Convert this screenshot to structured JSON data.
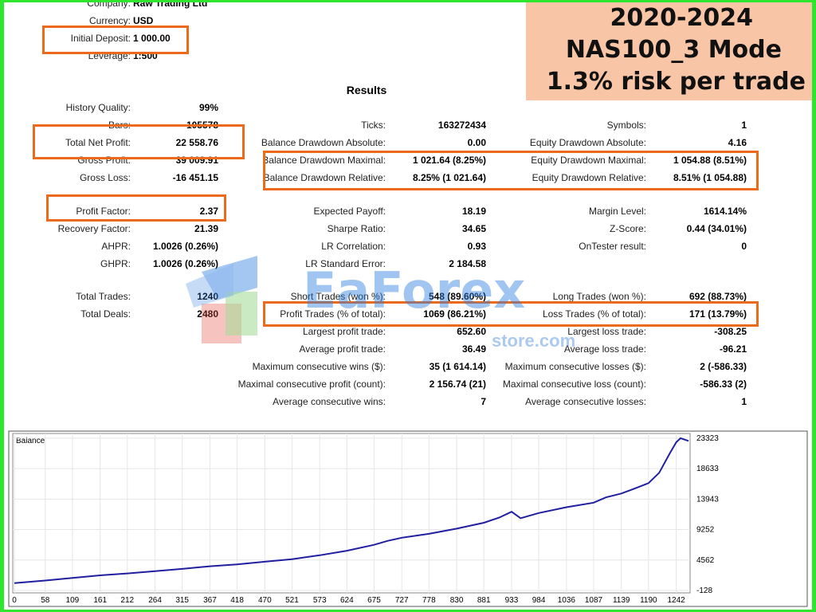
{
  "summary": {
    "company_label": "Company:",
    "company_value": "Raw Trading Ltd",
    "currency_label": "Currency:",
    "currency_value": "USD",
    "initial_deposit_label": "Initial Deposit:",
    "initial_deposit_value": "1 000.00",
    "leverage_label": "Leverage:",
    "leverage_value": "1:500"
  },
  "banner": {
    "line1": "2020-2024",
    "line2": "NAS100_3 Mode",
    "line3": "1.3% risk per trade"
  },
  "results_title": "Results",
  "left_stats": [
    {
      "label": "History Quality:",
      "value": "99%"
    },
    {
      "label": "Bars:",
      "value": "105578"
    },
    {
      "label": "Total Net Profit:",
      "value": "22 558.76"
    },
    {
      "label": "Gross Profit:",
      "value": "39 009.91"
    },
    {
      "label": "Gross Loss:",
      "value": "-16 451.15"
    },
    {
      "label": "Profit Factor:",
      "value": "2.37"
    },
    {
      "label": "Recovery Factor:",
      "value": "21.39"
    },
    {
      "label": "AHPR:",
      "value": "1.0026 (0.26%)"
    },
    {
      "label": "GHPR:",
      "value": "1.0026 (0.26%)"
    },
    {
      "label": "Total Trades:",
      "value": "1240"
    },
    {
      "label": "Total Deals:",
      "value": "2480"
    }
  ],
  "mid_stats": [
    {
      "label": "Ticks:",
      "value": "163272434"
    },
    {
      "label": "Balance Drawdown Absolute:",
      "value": "0.00"
    },
    {
      "label": "Balance Drawdown Maximal:",
      "value": "1 021.64 (8.25%)"
    },
    {
      "label": "Balance Drawdown Relative:",
      "value": "8.25% (1 021.64)"
    },
    {
      "label": "Expected Payoff:",
      "value": "18.19"
    },
    {
      "label": "Sharpe Ratio:",
      "value": "34.65"
    },
    {
      "label": "LR Correlation:",
      "value": "0.93"
    },
    {
      "label": "LR Standard Error:",
      "value": "2 184.58"
    },
    {
      "label": "Short Trades (won %):",
      "value": "548 (89.60%)"
    },
    {
      "label": "Profit Trades (% of total):",
      "value": "1069 (86.21%)"
    },
    {
      "label": "Largest profit trade:",
      "value": "652.60"
    },
    {
      "label": "Average profit trade:",
      "value": "36.49"
    },
    {
      "label": "Maximum consecutive wins ($):",
      "value": "35 (1 614.14)"
    },
    {
      "label": "Maximal consecutive profit (count):",
      "value": "2 156.74 (21)"
    },
    {
      "label": "Average consecutive wins:",
      "value": "7"
    }
  ],
  "right_stats": [
    {
      "label": "Symbols:",
      "value": "1"
    },
    {
      "label": "Equity Drawdown Absolute:",
      "value": "4.16"
    },
    {
      "label": "Equity Drawdown Maximal:",
      "value": "1 054.88 (8.51%)"
    },
    {
      "label": "Equity Drawdown Relative:",
      "value": "8.51% (1 054.88)"
    },
    {
      "label": "Margin Level:",
      "value": "1614.14%"
    },
    {
      "label": "Z-Score:",
      "value": "0.44 (34.01%)"
    },
    {
      "label": "OnTester result:",
      "value": "0"
    },
    {
      "label": "Long Trades (won %):",
      "value": "692 (88.73%)"
    },
    {
      "label": "Loss Trades (% of total):",
      "value": "171 (13.79%)"
    },
    {
      "label": "Largest loss trade:",
      "value": "-308.25"
    },
    {
      "label": "Average loss trade:",
      "value": "-96.21"
    },
    {
      "label": "Maximum consecutive losses ($):",
      "value": "2 (-586.33)"
    },
    {
      "label": "Maximal consecutive loss (count):",
      "value": "-586.33 (2)"
    },
    {
      "label": "Average consecutive losses:",
      "value": "1"
    }
  ],
  "watermark": {
    "brand": "EaForex",
    "sub": "store.com"
  },
  "colors": {
    "highlight": "#ec6a1c",
    "banner": "#f8c5a7",
    "line": "#1f1fa0",
    "frame": "#2ee62e"
  },
  "chart_data": {
    "type": "line",
    "title": "Balance",
    "xlabel": "",
    "ylabel": "",
    "x_ticks": [
      0,
      58,
      109,
      161,
      212,
      264,
      315,
      367,
      418,
      470,
      521,
      573,
      624,
      675,
      727,
      778,
      830,
      881,
      933,
      984,
      1036,
      1087,
      1139,
      1190,
      1242
    ],
    "y_ticks": [
      -128,
      4562,
      9252,
      13943,
      18633,
      23323
    ],
    "xlim": [
      0,
      1265
    ],
    "ylim": [
      -128,
      23800
    ],
    "series": [
      {
        "x": [
          0,
          58,
          109,
          161,
          212,
          264,
          315,
          367,
          418,
          470,
          521,
          573,
          624,
          675,
          700,
          727,
          778,
          830,
          881,
          910,
          933,
          950,
          984,
          1036,
          1087,
          1110,
          1139,
          1165,
          1190,
          1210,
          1230,
          1242,
          1250,
          1265
        ],
        "values": [
          1000,
          1400,
          1800,
          2200,
          2500,
          2850,
          3200,
          3600,
          3900,
          4300,
          4700,
          5300,
          6000,
          6900,
          7500,
          8000,
          8600,
          9400,
          10300,
          11100,
          12000,
          11000,
          11800,
          12700,
          13400,
          14200,
          14800,
          15600,
          16400,
          18000,
          21000,
          22700,
          23323,
          22900
        ]
      }
    ]
  }
}
